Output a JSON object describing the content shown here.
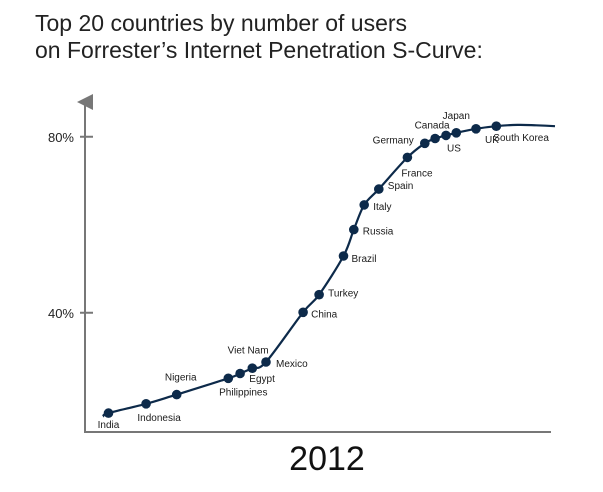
{
  "title_line1": "Top 20 countries by number of users",
  "title_line2": "on Forrester’s Internet Penetration S-Curve:",
  "chart_data": {
    "type": "line",
    "title": "Top 20 countries by number of users on Forrester’s Internet Penetration S-Curve:",
    "xlabel": "2012",
    "ylabel": "",
    "y_ticks": [
      {
        "value": 40,
        "label": "40%"
      },
      {
        "value": 80,
        "label": "80%"
      }
    ],
    "ylim": [
      12,
      90
    ],
    "line_color": "#0d2a4a",
    "point_color": "#0d2a4a",
    "points": [
      {
        "name": "India",
        "x": 0.05,
        "y": 17.2
      },
      {
        "name": "Indonesia",
        "x": 0.13,
        "y": 19.3
      },
      {
        "name": "Nigeria",
        "x": 0.195,
        "y": 21.4
      },
      {
        "name": "Philippines",
        "x": 0.305,
        "y": 25.1
      },
      {
        "name": "Viet Nam",
        "x": 0.33,
        "y": 26.2
      },
      {
        "name": "Egypt",
        "x": 0.356,
        "y": 27.4
      },
      {
        "name": "Mexico",
        "x": 0.385,
        "y": 28.8
      },
      {
        "name": "China",
        "x": 0.464,
        "y": 40.1
      },
      {
        "name": "Turkey",
        "x": 0.498,
        "y": 44.1
      },
      {
        "name": "Brazil",
        "x": 0.55,
        "y": 52.9
      },
      {
        "name": "Russia",
        "x": 0.572,
        "y": 58.9
      },
      {
        "name": "Italy",
        "x": 0.594,
        "y": 64.5
      },
      {
        "name": "Spain",
        "x": 0.625,
        "y": 68.1
      },
      {
        "name": "France",
        "x": 0.686,
        "y": 75.3
      },
      {
        "name": "Germany",
        "x": 0.723,
        "y": 78.5
      },
      {
        "name": "Canada",
        "x": 0.745,
        "y": 79.6
      },
      {
        "name": "US",
        "x": 0.768,
        "y": 80.3
      },
      {
        "name": "Japan",
        "x": 0.79,
        "y": 80.9
      },
      {
        "name": "UK",
        "x": 0.832,
        "y": 81.8
      },
      {
        "name": "South Korea",
        "x": 0.875,
        "y": 82.4
      }
    ]
  }
}
